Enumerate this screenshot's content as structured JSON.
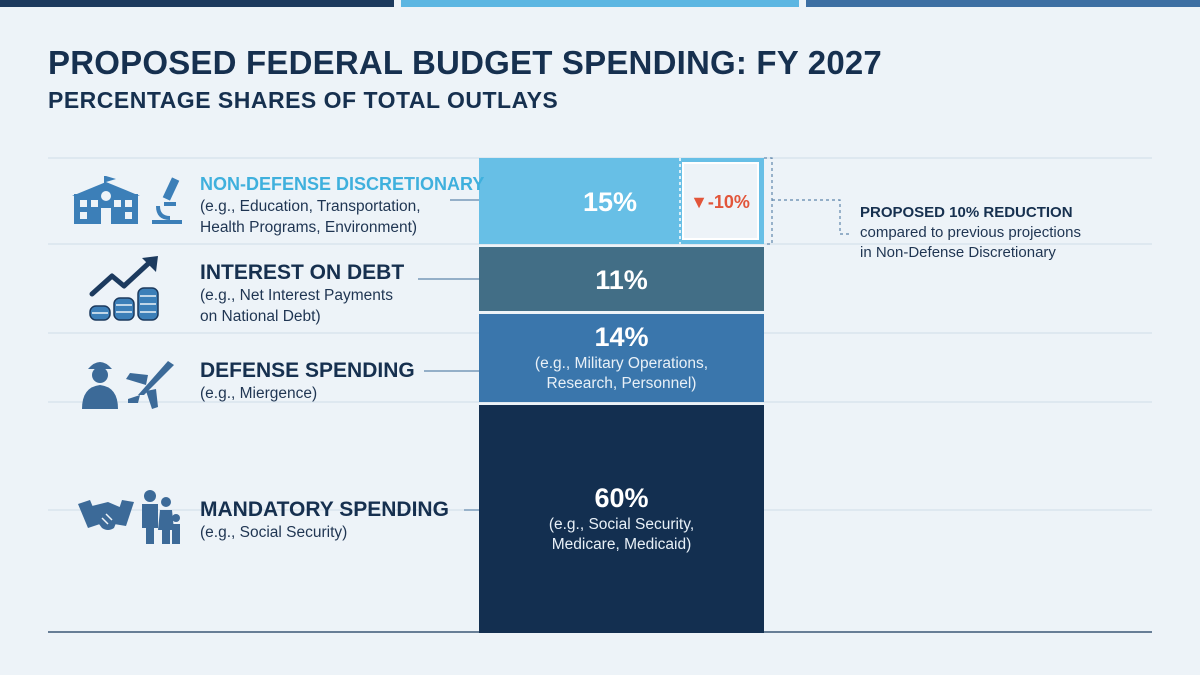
{
  "title": "PROPOSED FEDERAL BUDGET SPENDING: FY 2027",
  "subtitle": "PERCENTAGE SHARES OF TOTAL OUTLAYS",
  "colors": {
    "non_defense": "#67bfe6",
    "interest": "#426e86",
    "defense": "#3a76ac",
    "mandatory": "#132f50",
    "reduction": "#e2553a",
    "accent_text": "#3fb0dd"
  },
  "chart_data": {
    "type": "bar",
    "stacked": true,
    "title": "PROPOSED FEDERAL BUDGET SPENDING: FY 2027",
    "subtitle": "PERCENTAGE SHARES OF TOTAL OUTLAYS",
    "unit": "%",
    "segments": [
      {
        "key": "non_defense",
        "name": "NON-DEFENSE DISCRETIONARY",
        "value": 15,
        "label": "15%",
        "desc": [
          "(e.g., Education, Transportation,",
          "Health Programs, Environment)"
        ],
        "inner_desc": [],
        "change": "▼-10%",
        "icons": [
          "school-icon",
          "microscope-icon"
        ]
      },
      {
        "key": "interest",
        "name": "INTEREST ON DEBT",
        "value": 11,
        "label": "11%",
        "desc": [
          "(e.g., Net Interest Payments",
          "on National Debt)"
        ],
        "inner_desc": [],
        "icons": [
          "rising-arrow-icon",
          "coin-stacks-icon"
        ]
      },
      {
        "key": "defense",
        "name": "DEFENSE SPENDING",
        "value": 14,
        "label": "14%",
        "desc": [
          "(e.g., Miergence)"
        ],
        "inner_desc": [
          "(e.g., Military Operations,",
          "Research, Personnel)"
        ],
        "icons": [
          "soldier-icon",
          "fighter-jet-icon"
        ]
      },
      {
        "key": "mandatory",
        "name": "MANDATORY SPENDING",
        "value": 60,
        "label": "60%",
        "desc": [
          "(e.g., Social Security)"
        ],
        "inner_desc": [
          "(e.g., Social Security,",
          "Medicare, Medicaid)"
        ],
        "icons": [
          "handshake-icon",
          "family-icon"
        ]
      }
    ],
    "annotation": {
      "title": "PROPOSED 10% REDUCTION",
      "lines": [
        "compared to previous projections",
        "in Non-Defense Discretionary"
      ]
    },
    "grid": true
  }
}
